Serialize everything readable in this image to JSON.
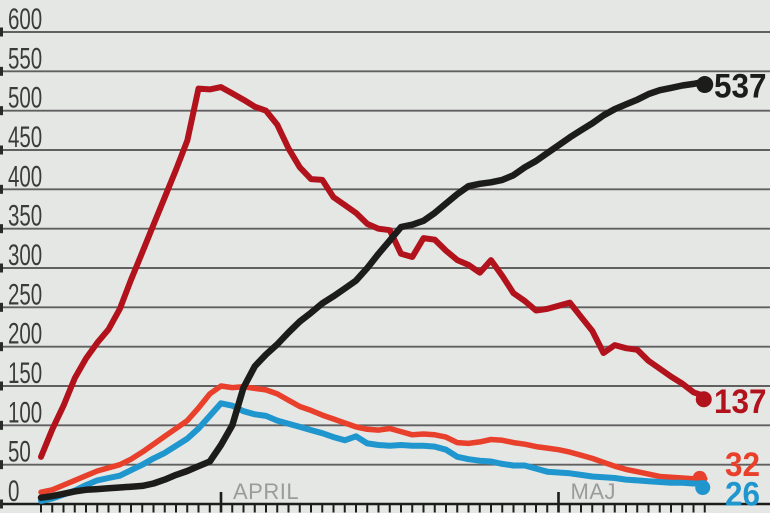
{
  "chart_data": {
    "type": "line",
    "title": "",
    "y_axis": {
      "min": 0,
      "max": 600,
      "step": 50,
      "tick_labels": [
        "600",
        "550",
        "500",
        "450",
        "400",
        "350",
        "300",
        "250",
        "200",
        "150",
        "100",
        "50",
        "0"
      ],
      "grid": true
    },
    "x_axis": {
      "unit": "day",
      "n_days": 60,
      "daily_ticks": true,
      "month_labels": [
        {
          "label": "APRIL",
          "day": 16
        },
        {
          "label": "MAJ",
          "day": 46
        }
      ]
    },
    "series": [
      {
        "name": "dark-red-line",
        "color": "#b1121b",
        "end_label": "137",
        "values": [
          60,
          95,
          125,
          160,
          185,
          205,
          222,
          248,
          285,
          320,
          355,
          390,
          425,
          462,
          528,
          527,
          530,
          522,
          514,
          505,
          500,
          482,
          452,
          428,
          413,
          412,
          390,
          380,
          370,
          356,
          350,
          348,
          318,
          314,
          338,
          336,
          322,
          310,
          304,
          294,
          310,
          290,
          268,
          258,
          246,
          248,
          252,
          256,
          238,
          220,
          192,
          202,
          198,
          196,
          182,
          172,
          162,
          153,
          142,
          137
        ]
      },
      {
        "name": "black-line",
        "color": "#1c1c1a",
        "end_label": "537",
        "values": [
          8,
          10,
          13,
          16,
          18,
          19,
          20,
          21,
          22,
          23,
          26,
          31,
          37,
          42,
          48,
          54,
          75,
          100,
          148,
          175,
          190,
          203,
          218,
          232,
          243,
          255,
          264,
          274,
          284,
          300,
          318,
          335,
          352,
          355,
          360,
          370,
          382,
          394,
          404,
          407,
          409,
          412,
          418,
          428,
          436,
          446,
          456,
          466,
          475,
          484,
          494,
          502,
          508,
          514,
          521,
          526,
          529,
          532,
          534,
          537
        ]
      },
      {
        "name": "red-line",
        "color": "#e8402b",
        "end_label": "32",
        "values": [
          15,
          18,
          24,
          30,
          36,
          42,
          46,
          50,
          57,
          66,
          76,
          86,
          96,
          106,
          122,
          140,
          150,
          148,
          149,
          147,
          145,
          140,
          132,
          124,
          119,
          113,
          108,
          103,
          98,
          95,
          94,
          96,
          92,
          88,
          89,
          88,
          85,
          78,
          77,
          79,
          82,
          81,
          78,
          76,
          73,
          71,
          69,
          66,
          62,
          58,
          53,
          48,
          44,
          41,
          38,
          35,
          34,
          33,
          32,
          32
        ]
      },
      {
        "name": "blue-line",
        "color": "#2096ce",
        "end_label": "26",
        "values": [
          4,
          7,
          12,
          17,
          24,
          30,
          33,
          36,
          43,
          50,
          58,
          65,
          74,
          83,
          96,
          112,
          128,
          125,
          118,
          114,
          112,
          106,
          102,
          98,
          94,
          90,
          85,
          81,
          86,
          77,
          75,
          74,
          75,
          74,
          74,
          73,
          69,
          60,
          57,
          55,
          54,
          51,
          49,
          49,
          45,
          41,
          40,
          39,
          37,
          35,
          34,
          33,
          31,
          30,
          29,
          28,
          27,
          27,
          26,
          26
        ]
      }
    ]
  }
}
